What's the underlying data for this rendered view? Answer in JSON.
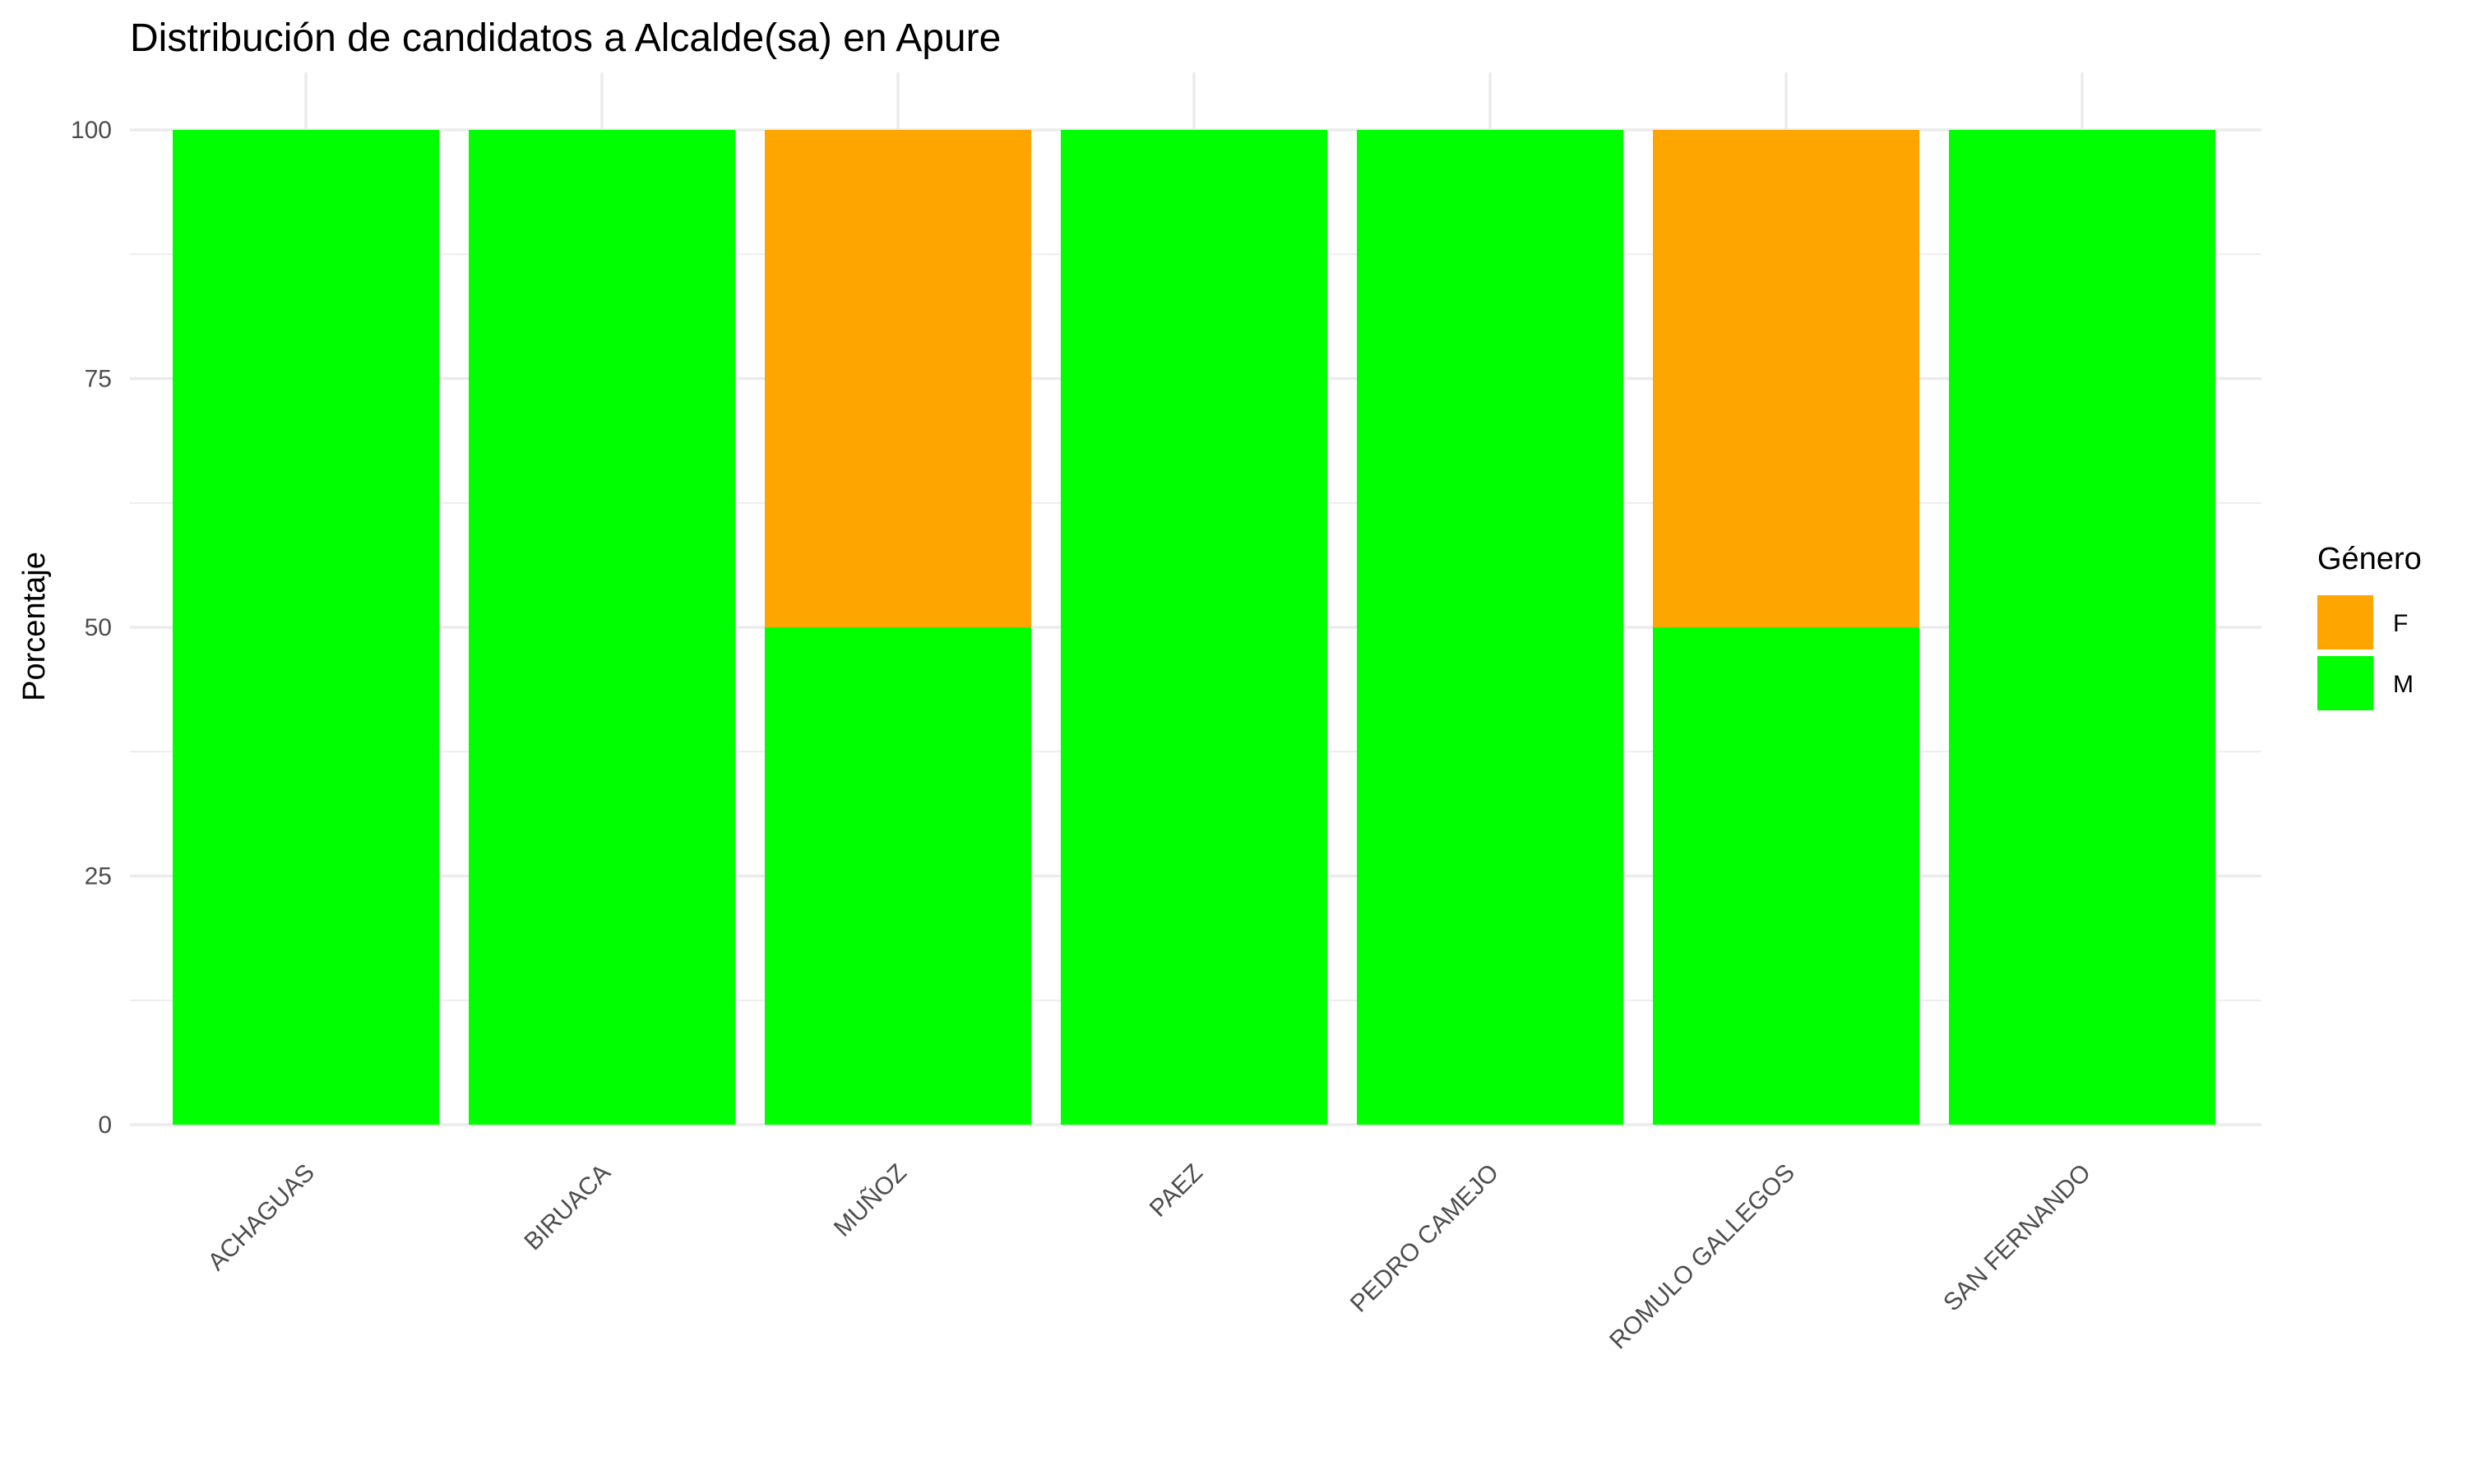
{
  "chart_data": {
    "type": "bar",
    "stacked": true,
    "title": "Distribución de candidatos a Alcalde(sa) en Apure",
    "xlabel": "",
    "ylabel": "Porcentaje",
    "ylim": [
      0,
      100
    ],
    "yticks": [
      "0",
      "25",
      "50",
      "75",
      "100"
    ],
    "grid": true,
    "legend": {
      "title": "Género",
      "placement": "right",
      "entries": [
        "F",
        "M"
      ]
    },
    "categories": [
      "ACHAGUAS",
      "BIRUACA",
      "MUÑOZ",
      "PAEZ",
      "PEDRO CAMEJO",
      "ROMULO GALLEGOS",
      "SAN FERNANDO"
    ],
    "series": [
      {
        "name": "M",
        "color": "#00ff00",
        "values": [
          100,
          100,
          50,
          100,
          100,
          50,
          100
        ]
      },
      {
        "name": "F",
        "color": "#ffa500",
        "values": [
          0,
          0,
          50,
          0,
          0,
          50,
          0
        ]
      }
    ]
  }
}
